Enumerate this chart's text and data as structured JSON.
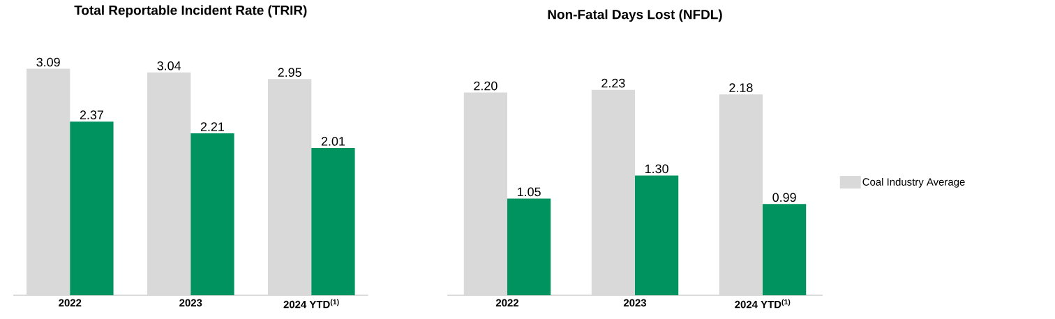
{
  "chart_data": [
    {
      "type": "bar",
      "title": "Total Reportable Incident Rate (TRIR)",
      "categories": [
        "2022",
        "2023",
        "2024 YTD$^{(1)}$"
      ],
      "data_labels": true,
      "series": [
        {
          "color": "#d9d9d9",
          "values": [
            3.09,
            3.04,
            2.95
          ],
          "value_labels": [
            "3.09",
            "3.04",
            "2.95"
          ]
        },
        {
          "color": "#00935f",
          "values": [
            2.37,
            2.21,
            2.01
          ],
          "value_labels": [
            "2.37",
            "2.21",
            "2.01"
          ]
        }
      ],
      "legend": false
    },
    {
      "type": "bar",
      "title": "Non-Fatal Days Lost (NFDL)",
      "categories": [
        "2022",
        "2023",
        "2024 YTD$^{(1)}$"
      ],
      "data_labels": true,
      "series": [
        {
          "name": "Coal Industry Average",
          "color": "#d9d9d9",
          "values": [
            2.2,
            2.23,
            2.18
          ],
          "value_labels": [
            "2.20",
            "2.23",
            "2.18"
          ]
        },
        {
          "color": "#00935f",
          "values": [
            1.05,
            1.3,
            0.99
          ],
          "value_labels": [
            "1.05",
            "1.30",
            "0.99"
          ]
        }
      ],
      "legend": "right"
    }
  ]
}
